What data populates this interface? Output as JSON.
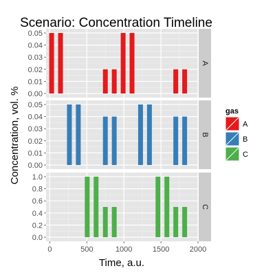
{
  "chart_data": {
    "type": "bar",
    "title": "Scenario: Concentration Timeline",
    "xlabel": "Time, a.u.",
    "ylabel": "Concentration, vol. %",
    "xlim": [
      -50,
      2000
    ],
    "x_ticks": [
      0,
      500,
      1000,
      1500,
      2000
    ],
    "legend": {
      "title": "gas",
      "position": "right",
      "entries": [
        "A",
        "B",
        "C"
      ]
    },
    "grid": true,
    "panels": [
      {
        "label": "A",
        "color": "#e41a1c",
        "ylim": [
          0,
          0.05
        ],
        "y_ticks": [
          "0.00",
          "0.01",
          "0.02",
          "0.03",
          "0.04",
          "0.05"
        ],
        "bars": [
          {
            "x": 25,
            "value": 0.05
          },
          {
            "x": 145,
            "value": 0.05
          },
          {
            "x": 750,
            "value": 0.02
          },
          {
            "x": 870,
            "value": 0.02
          },
          {
            "x": 990,
            "value": 0.05
          },
          {
            "x": 1110,
            "value": 0.05
          },
          {
            "x": 1700,
            "value": 0.02
          },
          {
            "x": 1820,
            "value": 0.02
          }
        ]
      },
      {
        "label": "B",
        "color": "#377eb8",
        "ylim": [
          0,
          0.05
        ],
        "y_ticks": [
          "0.00",
          "0.01",
          "0.02",
          "0.03",
          "0.04",
          "0.05"
        ],
        "bars": [
          {
            "x": 265,
            "value": 0.05
          },
          {
            "x": 385,
            "value": 0.05
          },
          {
            "x": 750,
            "value": 0.04
          },
          {
            "x": 870,
            "value": 0.04
          },
          {
            "x": 1225,
            "value": 0.05
          },
          {
            "x": 1345,
            "value": 0.05
          },
          {
            "x": 1700,
            "value": 0.04
          },
          {
            "x": 1820,
            "value": 0.04
          }
        ]
      },
      {
        "label": "C",
        "color": "#4daf4a",
        "ylim": [
          0,
          1.0
        ],
        "y_ticks": [
          "0.0",
          "0.2",
          "0.4",
          "0.6",
          "0.8",
          "1.0"
        ],
        "bars": [
          {
            "x": 505,
            "value": 1.0
          },
          {
            "x": 625,
            "value": 1.0
          },
          {
            "x": 750,
            "value": 0.5
          },
          {
            "x": 870,
            "value": 0.5
          },
          {
            "x": 1460,
            "value": 1.0
          },
          {
            "x": 1580,
            "value": 1.0
          },
          {
            "x": 1700,
            "value": 0.5
          },
          {
            "x": 1820,
            "value": 0.5
          }
        ]
      }
    ]
  }
}
